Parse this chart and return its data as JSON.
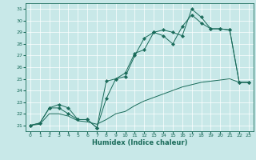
{
  "title": "",
  "xlabel": "Humidex (Indice chaleur)",
  "bg_color": "#c8e8e8",
  "line_color": "#1a6b5a",
  "xlim": [
    -0.5,
    23.5
  ],
  "ylim": [
    20.5,
    31.5
  ],
  "xticks": [
    0,
    1,
    2,
    3,
    4,
    5,
    6,
    7,
    8,
    9,
    10,
    11,
    12,
    13,
    14,
    15,
    16,
    17,
    18,
    19,
    20,
    21,
    22,
    23
  ],
  "yticks": [
    21,
    22,
    23,
    24,
    25,
    26,
    27,
    28,
    29,
    30,
    31
  ],
  "series": [
    [
      21.0,
      21.2,
      22.5,
      22.5,
      22.0,
      21.5,
      21.5,
      20.8,
      23.3,
      25.0,
      25.2,
      27.0,
      28.5,
      29.0,
      29.2,
      29.0,
      28.7,
      31.0,
      30.3,
      29.3,
      29.3,
      29.2,
      24.7,
      24.7
    ],
    [
      21.0,
      21.2,
      22.5,
      22.8,
      22.5,
      21.5,
      21.5,
      20.8,
      24.8,
      25.0,
      25.5,
      27.2,
      27.5,
      29.0,
      28.7,
      28.0,
      29.5,
      30.5,
      29.8,
      29.3,
      29.3,
      29.2,
      24.7,
      24.7
    ],
    [
      21.0,
      21.1,
      22.0,
      22.0,
      21.8,
      21.4,
      21.3,
      21.1,
      21.5,
      22.0,
      22.2,
      22.7,
      23.1,
      23.4,
      23.7,
      24.0,
      24.3,
      24.5,
      24.7,
      24.8,
      24.9,
      25.0,
      24.7,
      24.7
    ]
  ],
  "markers": [
    true,
    true,
    false
  ],
  "figsize": [
    3.2,
    2.0
  ],
  "dpi": 100,
  "tick_fontsize": 4.5,
  "xlabel_fontsize": 6.0,
  "grid_color": "#ffffff",
  "grid_lw": 0.5,
  "line_lw": 0.7,
  "marker_size": 2.2
}
